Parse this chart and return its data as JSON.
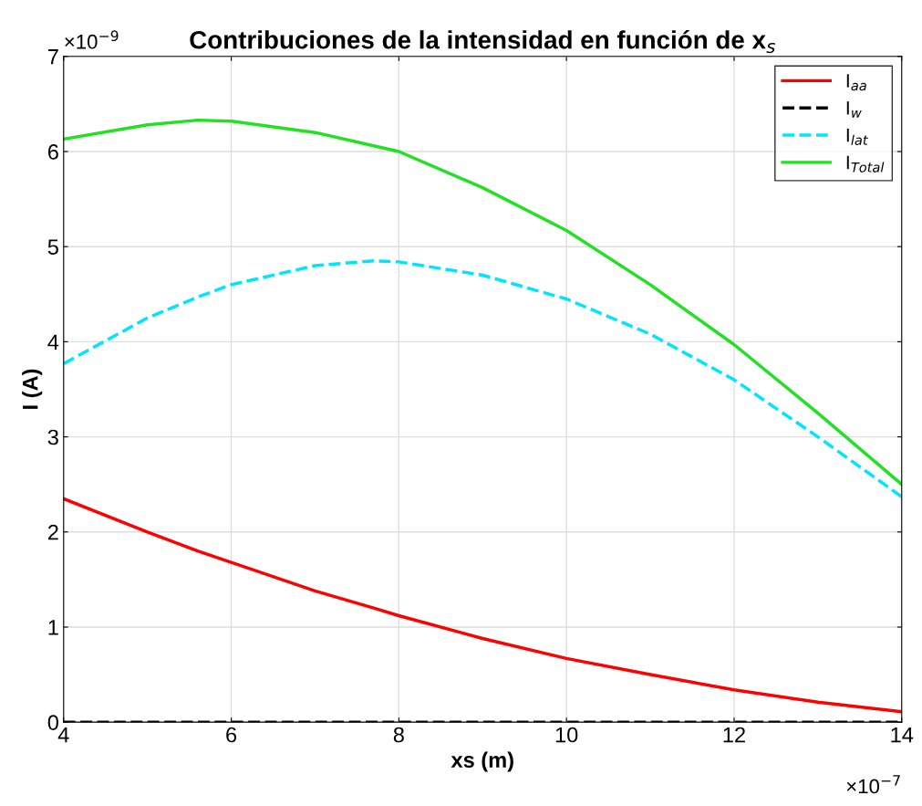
{
  "chart_data": {
    "type": "line",
    "title": "Contribuciones de la intensidad en función de x$_{s}$",
    "xlabel": "xs (m)",
    "ylabel": "I (A)",
    "x": [
      4,
      5,
      5.6,
      6,
      7,
      7.7,
      8,
      9,
      10,
      11,
      12,
      13,
      14
    ],
    "series": [
      {
        "name": "I$_{aa}$",
        "color": "#ff0000",
        "line_style": "solid",
        "values": [
          2.35,
          2.0,
          1.8,
          1.68,
          1.38,
          1.2,
          1.12,
          0.88,
          0.67,
          0.5,
          0.34,
          0.21,
          0.11
        ]
      },
      {
        "name": "I$_{w}$",
        "color": "#000000",
        "line_style": "dashed",
        "values": [
          0,
          0,
          0,
          0,
          0,
          0,
          0,
          0,
          0,
          0,
          0,
          0,
          0
        ]
      },
      {
        "name": "I$_{lat}$",
        "color": "#00e5ff",
        "line_style": "dashed",
        "values": [
          3.77,
          4.25,
          4.47,
          4.6,
          4.8,
          4.85,
          4.84,
          4.7,
          4.45,
          4.08,
          3.6,
          3.0,
          2.37
        ]
      },
      {
        "name": "I$_{Total}$",
        "color": "#22e022",
        "line_style": "solid",
        "values": [
          6.13,
          6.28,
          6.33,
          6.32,
          6.2,
          6.06,
          6.0,
          5.62,
          5.17,
          4.6,
          3.97,
          3.25,
          2.5
        ]
      }
    ],
    "xlim": [
      4,
      14
    ],
    "xticks": [
      4,
      6,
      8,
      10,
      12,
      14
    ],
    "ylim": [
      0,
      7
    ],
    "yticks": [
      0,
      1,
      2,
      3,
      4,
      5,
      6,
      7
    ],
    "grid": true,
    "legend": "top right",
    "annotations": [
      "×10$^{−9}$",
      "×10$^{−7}$"
    ]
  }
}
